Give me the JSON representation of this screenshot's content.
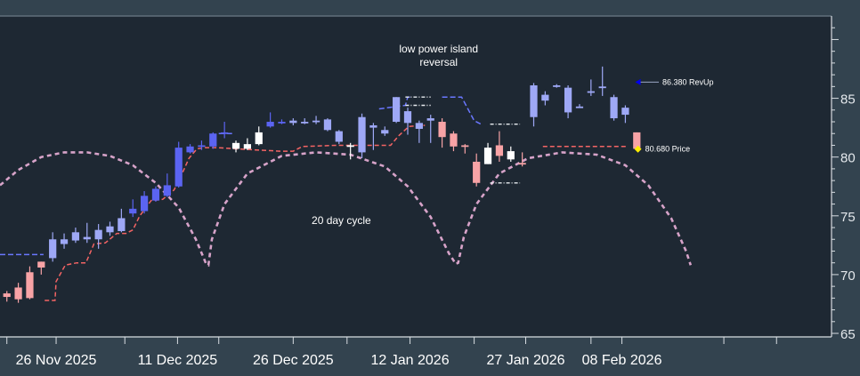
{
  "chart_data": {
    "type": "candlestick",
    "y_axis": {
      "ticks": [
        65,
        70,
        75,
        80,
        85
      ],
      "ylim": [
        64.7,
        92.0
      ],
      "side": "right"
    },
    "x_axis": {
      "tick_labels": [
        {
          "label": "26 Nov 2025",
          "at": 4.3
        },
        {
          "label": "11 Dec 2025",
          "at": 14.9
        },
        {
          "label": "26 Dec 2025",
          "at": 25.0
        },
        {
          "label": "12 Jan 2026",
          "at": 35.2
        },
        {
          "label": "27 Jan 2026",
          "at": 45.3
        },
        {
          "label": "08 Feb 2026",
          "at": 53.7
        }
      ],
      "xlim": [
        -0.6,
        72.0
      ]
    },
    "candles": [
      {
        "x": 0,
        "o": 68.1,
        "h": 68.6,
        "l": 67.7,
        "c": 68.4,
        "color": "#f8a3a6"
      },
      {
        "x": 1,
        "o": 67.9,
        "h": 69.3,
        "l": 67.6,
        "c": 68.9,
        "color": "#f8a3a6"
      },
      {
        "x": 2,
        "o": 68.0,
        "h": 70.7,
        "l": 67.9,
        "c": 70.2,
        "color": "#f8a3a6"
      },
      {
        "x": 3,
        "o": 70.6,
        "h": 71.1,
        "l": 70.0,
        "c": 71.1,
        "color": "#f8a3a6"
      },
      {
        "x": 4,
        "o": 71.4,
        "h": 73.6,
        "l": 71.1,
        "c": 73.0,
        "color": "#9ea8f6"
      },
      {
        "x": 5,
        "o": 72.6,
        "h": 73.5,
        "l": 72.2,
        "c": 73.0,
        "color": "#9ea8f6"
      },
      {
        "x": 6,
        "o": 72.9,
        "h": 74.0,
        "l": 72.7,
        "c": 73.6,
        "color": "#9ea8f6"
      },
      {
        "x": 7,
        "o": 73.0,
        "h": 74.4,
        "l": 72.7,
        "c": 73.2,
        "color": "#9ea8f6"
      },
      {
        "x": 8,
        "o": 73.0,
        "h": 74.3,
        "l": 72.2,
        "c": 73.8,
        "color": "#9ea8f6"
      },
      {
        "x": 9,
        "o": 73.6,
        "h": 74.5,
        "l": 73.3,
        "c": 74.1,
        "color": "#9ea8f6"
      },
      {
        "x": 10,
        "o": 73.7,
        "h": 75.6,
        "l": 73.6,
        "c": 74.8,
        "color": "#9ea8f6"
      },
      {
        "x": 11,
        "o": 75.2,
        "h": 76.4,
        "l": 74.9,
        "c": 75.6,
        "color": "#5b64f2"
      },
      {
        "x": 12,
        "o": 75.4,
        "h": 77.1,
        "l": 75.2,
        "c": 76.7,
        "color": "#5b64f2"
      },
      {
        "x": 13,
        "o": 76.3,
        "h": 77.5,
        "l": 76.2,
        "c": 77.3,
        "color": "#5b64f2"
      },
      {
        "x": 14,
        "o": 76.7,
        "h": 78.6,
        "l": 76.6,
        "c": 77.6,
        "color": "#5b64f2"
      },
      {
        "x": 15,
        "o": 77.5,
        "h": 81.3,
        "l": 77.4,
        "c": 80.8,
        "color": "#5b64f2"
      },
      {
        "x": 16,
        "o": 80.4,
        "h": 81.1,
        "l": 80.3,
        "c": 80.9,
        "color": "#5b64f2"
      },
      {
        "x": 17,
        "o": 80.9,
        "h": 81.4,
        "l": 80.6,
        "c": 81.0,
        "color": "#5b64f2"
      },
      {
        "x": 18,
        "o": 80.9,
        "h": 82.1,
        "l": 80.7,
        "c": 82.0,
        "color": "#5b64f2"
      },
      {
        "x": 19,
        "o": 82.0,
        "h": 83.0,
        "l": 81.6,
        "c": 82.1,
        "color": "#5b64f2"
      },
      {
        "x": 20,
        "o": 80.7,
        "h": 81.4,
        "l": 80.4,
        "c": 81.2,
        "color": "#ffffff"
      },
      {
        "x": 21,
        "o": 81.1,
        "h": 81.6,
        "l": 80.6,
        "c": 80.7,
        "color": "#ffffff"
      },
      {
        "x": 22,
        "o": 81.1,
        "h": 82.6,
        "l": 81.0,
        "c": 82.1,
        "color": "#ffffff"
      },
      {
        "x": 23,
        "o": 82.6,
        "h": 83.8,
        "l": 82.5,
        "c": 83.0,
        "color": "#5b64f2"
      },
      {
        "x": 24,
        "o": 82.9,
        "h": 83.2,
        "l": 82.8,
        "c": 83.0,
        "color": "#5b64f2"
      },
      {
        "x": 25,
        "o": 82.9,
        "h": 83.3,
        "l": 82.7,
        "c": 83.1,
        "color": "#9ea8f6"
      },
      {
        "x": 26,
        "o": 82.9,
        "h": 83.3,
        "l": 82.8,
        "c": 83.0,
        "color": "#9ea8f6"
      },
      {
        "x": 27,
        "o": 83.1,
        "h": 83.5,
        "l": 82.8,
        "c": 83.1,
        "color": "#9ea8f6"
      },
      {
        "x": 28,
        "o": 83.2,
        "h": 83.3,
        "l": 82.2,
        "c": 82.3,
        "color": "#9ea8f6"
      },
      {
        "x": 29,
        "o": 82.2,
        "h": 82.3,
        "l": 81.1,
        "c": 81.3,
        "color": "#9ea8f6"
      },
      {
        "x": 30,
        "o": 81.0,
        "h": 81.2,
        "l": 79.8,
        "c": 80.9,
        "color": "#ffffff"
      },
      {
        "x": 31,
        "o": 80.4,
        "h": 83.7,
        "l": 79.9,
        "c": 83.4,
        "color": "#9ea8f6"
      },
      {
        "x": 32,
        "o": 82.5,
        "h": 82.9,
        "l": 80.6,
        "c": 82.7,
        "color": "#9ea8f6"
      },
      {
        "x": 33,
        "o": 82.0,
        "h": 82.6,
        "l": 81.8,
        "c": 82.3,
        "color": "#9ea8f6"
      },
      {
        "x": 34,
        "o": 83.0,
        "h": 85.1,
        "l": 82.9,
        "c": 85.1,
        "color": "#9ea8f6"
      },
      {
        "x": 35,
        "o": 82.9,
        "h": 84.2,
        "l": 81.9,
        "c": 83.9,
        "color": "#9ea8f6"
      },
      {
        "x": 36,
        "o": 82.4,
        "h": 83.1,
        "l": 81.2,
        "c": 82.9,
        "color": "#9ea8f6"
      },
      {
        "x": 37,
        "o": 83.1,
        "h": 83.6,
        "l": 81.2,
        "c": 83.3,
        "color": "#9ea8f6"
      },
      {
        "x": 38,
        "o": 83.0,
        "h": 83.3,
        "l": 80.8,
        "c": 81.7,
        "color": "#f8a3a6"
      },
      {
        "x": 39,
        "o": 82.0,
        "h": 82.2,
        "l": 80.5,
        "c": 80.9,
        "color": "#f8a3a6"
      },
      {
        "x": 40,
        "o": 81.0,
        "h": 81.1,
        "l": 80.3,
        "c": 80.9,
        "color": "#f8a3a6"
      },
      {
        "x": 41,
        "o": 79.6,
        "h": 80.3,
        "l": 77.5,
        "c": 77.8,
        "color": "#f8a3a6"
      },
      {
        "x": 42,
        "o": 80.8,
        "h": 81.2,
        "l": 79.4,
        "c": 79.4,
        "color": "#ffffff"
      },
      {
        "x": 43,
        "o": 80.1,
        "h": 82.2,
        "l": 79.6,
        "c": 81.0,
        "color": "#f8a3a6"
      },
      {
        "x": 44,
        "o": 80.5,
        "h": 80.9,
        "l": 79.6,
        "c": 79.8,
        "color": "#ffffff"
      },
      {
        "x": 45,
        "o": 79.5,
        "h": 80.4,
        "l": 79.2,
        "c": 79.4,
        "color": "#f8a3a6"
      },
      {
        "x": 46,
        "o": 83.4,
        "h": 86.3,
        "l": 82.6,
        "c": 86.1,
        "color": "#9ea8f6"
      },
      {
        "x": 47,
        "o": 85.3,
        "h": 85.6,
        "l": 84.4,
        "c": 84.8,
        "color": "#9ea8f6"
      },
      {
        "x": 48,
        "o": 86.1,
        "h": 86.2,
        "l": 85.9,
        "c": 86.0,
        "color": "#9ea8f6"
      },
      {
        "x": 49,
        "o": 83.8,
        "h": 86.1,
        "l": 83.3,
        "c": 85.9,
        "color": "#9ea8f6"
      },
      {
        "x": 50,
        "o": 84.3,
        "h": 84.5,
        "l": 84.2,
        "c": 84.3,
        "color": "#9ea8f6"
      },
      {
        "x": 51,
        "o": 85.6,
        "h": 86.6,
        "l": 85.2,
        "c": 85.5,
        "color": "#9ea8f6"
      },
      {
        "x": 52,
        "o": 86.0,
        "h": 87.7,
        "l": 85.2,
        "c": 86.0,
        "color": "#9ea8f6"
      },
      {
        "x": 53,
        "o": 85.1,
        "h": 85.3,
        "l": 83.1,
        "c": 83.3,
        "color": "#9ea8f6"
      },
      {
        "x": 54,
        "o": 83.6,
        "h": 84.4,
        "l": 82.9,
        "c": 84.2,
        "color": "#9ea8f6"
      },
      {
        "x": 55,
        "o": 82.1,
        "h": 82.1,
        "l": 80.7,
        "c": 80.7,
        "color": "#f8a3a6"
      }
    ],
    "lines": {
      "cycle_arcs": {
        "color": "#d7a3c9",
        "points": [
          [
            -0.6,
            77.6
          ],
          [
            1.0,
            78.9
          ],
          [
            3.0,
            80.0
          ],
          [
            5.0,
            80.4
          ],
          [
            7.0,
            80.4
          ],
          [
            9.0,
            80.1
          ],
          [
            11.0,
            79.3
          ],
          [
            13.0,
            77.8
          ],
          [
            15.0,
            75.7
          ],
          [
            16.5,
            73.0
          ],
          [
            17.4,
            70.9
          ],
          [
            17.6,
            70.8
          ],
          [
            17.9,
            73.0
          ],
          [
            19.0,
            76.0
          ],
          [
            21.0,
            78.6
          ],
          [
            24.0,
            80.1
          ],
          [
            27.0,
            80.4
          ],
          [
            30.0,
            80.2
          ],
          [
            33.0,
            79.2
          ],
          [
            35.0,
            77.5
          ],
          [
            37.0,
            74.9
          ],
          [
            38.6,
            71.8
          ],
          [
            39.2,
            70.9
          ],
          [
            39.4,
            71.0
          ],
          [
            39.9,
            73.2
          ],
          [
            41.0,
            76.0
          ],
          [
            43.0,
            78.6
          ],
          [
            45.5,
            79.9
          ],
          [
            48.5,
            80.4
          ],
          [
            51.5,
            80.2
          ],
          [
            54.0,
            79.3
          ],
          [
            56.0,
            77.6
          ],
          [
            58.0,
            74.8
          ],
          [
            59.3,
            72.0
          ],
          [
            59.7,
            70.8
          ]
        ]
      },
      "red_stop": {
        "color": "#f46464",
        "points": [
          [
            3.3,
            67.8
          ],
          [
            4.2,
            67.8
          ],
          [
            4.3,
            69.4
          ],
          [
            5.1,
            70.8
          ],
          [
            6.1,
            71.0
          ],
          [
            6.9,
            71.0
          ],
          [
            7.6,
            72.6
          ],
          [
            8.6,
            72.7
          ],
          [
            9.6,
            73.5
          ],
          [
            10.4,
            73.5
          ],
          [
            11.0,
            73.8
          ],
          [
            11.6,
            75.0
          ],
          [
            12.6,
            76.3
          ],
          [
            13.6,
            76.4
          ],
          [
            14.6,
            77.2
          ],
          [
            15.3,
            78.6
          ],
          [
            15.9,
            79.9
          ],
          [
            16.6,
            80.7
          ],
          [
            17.3,
            80.8
          ],
          [
            18.3,
            80.8
          ],
          [
            21.8,
            80.6
          ],
          [
            23.9,
            80.5
          ],
          [
            25.0,
            80.5
          ],
          [
            25.8,
            80.9
          ],
          [
            28.8,
            81.0
          ],
          [
            32.3,
            81.0
          ],
          [
            33.5,
            81.0
          ],
          [
            34.2,
            81.8
          ],
          [
            35.1,
            82.6
          ],
          [
            36.5,
            82.7
          ]
        ]
      },
      "red_stop_2": {
        "color": "#f46464",
        "points": [
          [
            46.8,
            80.9
          ],
          [
            54.1,
            80.9
          ]
        ]
      },
      "blue_stop": {
        "color": "#6a77ff",
        "points": [
          [
            -0.6,
            71.7
          ],
          [
            3.2,
            71.7
          ]
        ]
      },
      "blue_stop_2": {
        "color": "#6a77ff",
        "points": [
          [
            18.5,
            82.0
          ],
          [
            19.8,
            82.0
          ]
        ]
      },
      "blue_stop_3": {
        "color": "#6a77ff",
        "points": [
          [
            32.5,
            84.1
          ],
          [
            34.8,
            84.4
          ],
          [
            35.0,
            85.1
          ],
          [
            35.4,
            85.1
          ]
        ]
      },
      "blue_stop_4": {
        "color": "#6a77ff",
        "points": [
          [
            38.0,
            85.1
          ],
          [
            39.7,
            85.1
          ],
          [
            40.8,
            83.1
          ],
          [
            41.4,
            82.8
          ]
        ]
      },
      "white_levels": [
        {
          "points": [
            [
              34.8,
              85.1
            ],
            [
              37.0,
              85.1
            ]
          ]
        },
        {
          "points": [
            [
              34.8,
              84.4
            ],
            [
              37.0,
              84.4
            ]
          ]
        },
        {
          "points": [
            [
              42.2,
              82.8
            ],
            [
              44.8,
              82.8
            ]
          ]
        },
        {
          "points": [
            [
              42.2,
              77.8
            ],
            [
              44.8,
              77.8
            ]
          ]
        }
      ]
    },
    "markers": {
      "revup": {
        "label": "86.380 RevUp",
        "x": 55.1,
        "y": 86.38,
        "color": "#0000ee"
      },
      "price": {
        "label": "80.680  Price",
        "x": 55.1,
        "y": 80.68,
        "color": "#ffee00"
      }
    },
    "annotations": [
      {
        "text": [
          "low power island",
          "reversal"
        ],
        "x": 37.7,
        "y": 88.9
      },
      {
        "text": [
          "20 day cycle"
        ],
        "x": 29.2,
        "y": 74.3
      }
    ]
  }
}
